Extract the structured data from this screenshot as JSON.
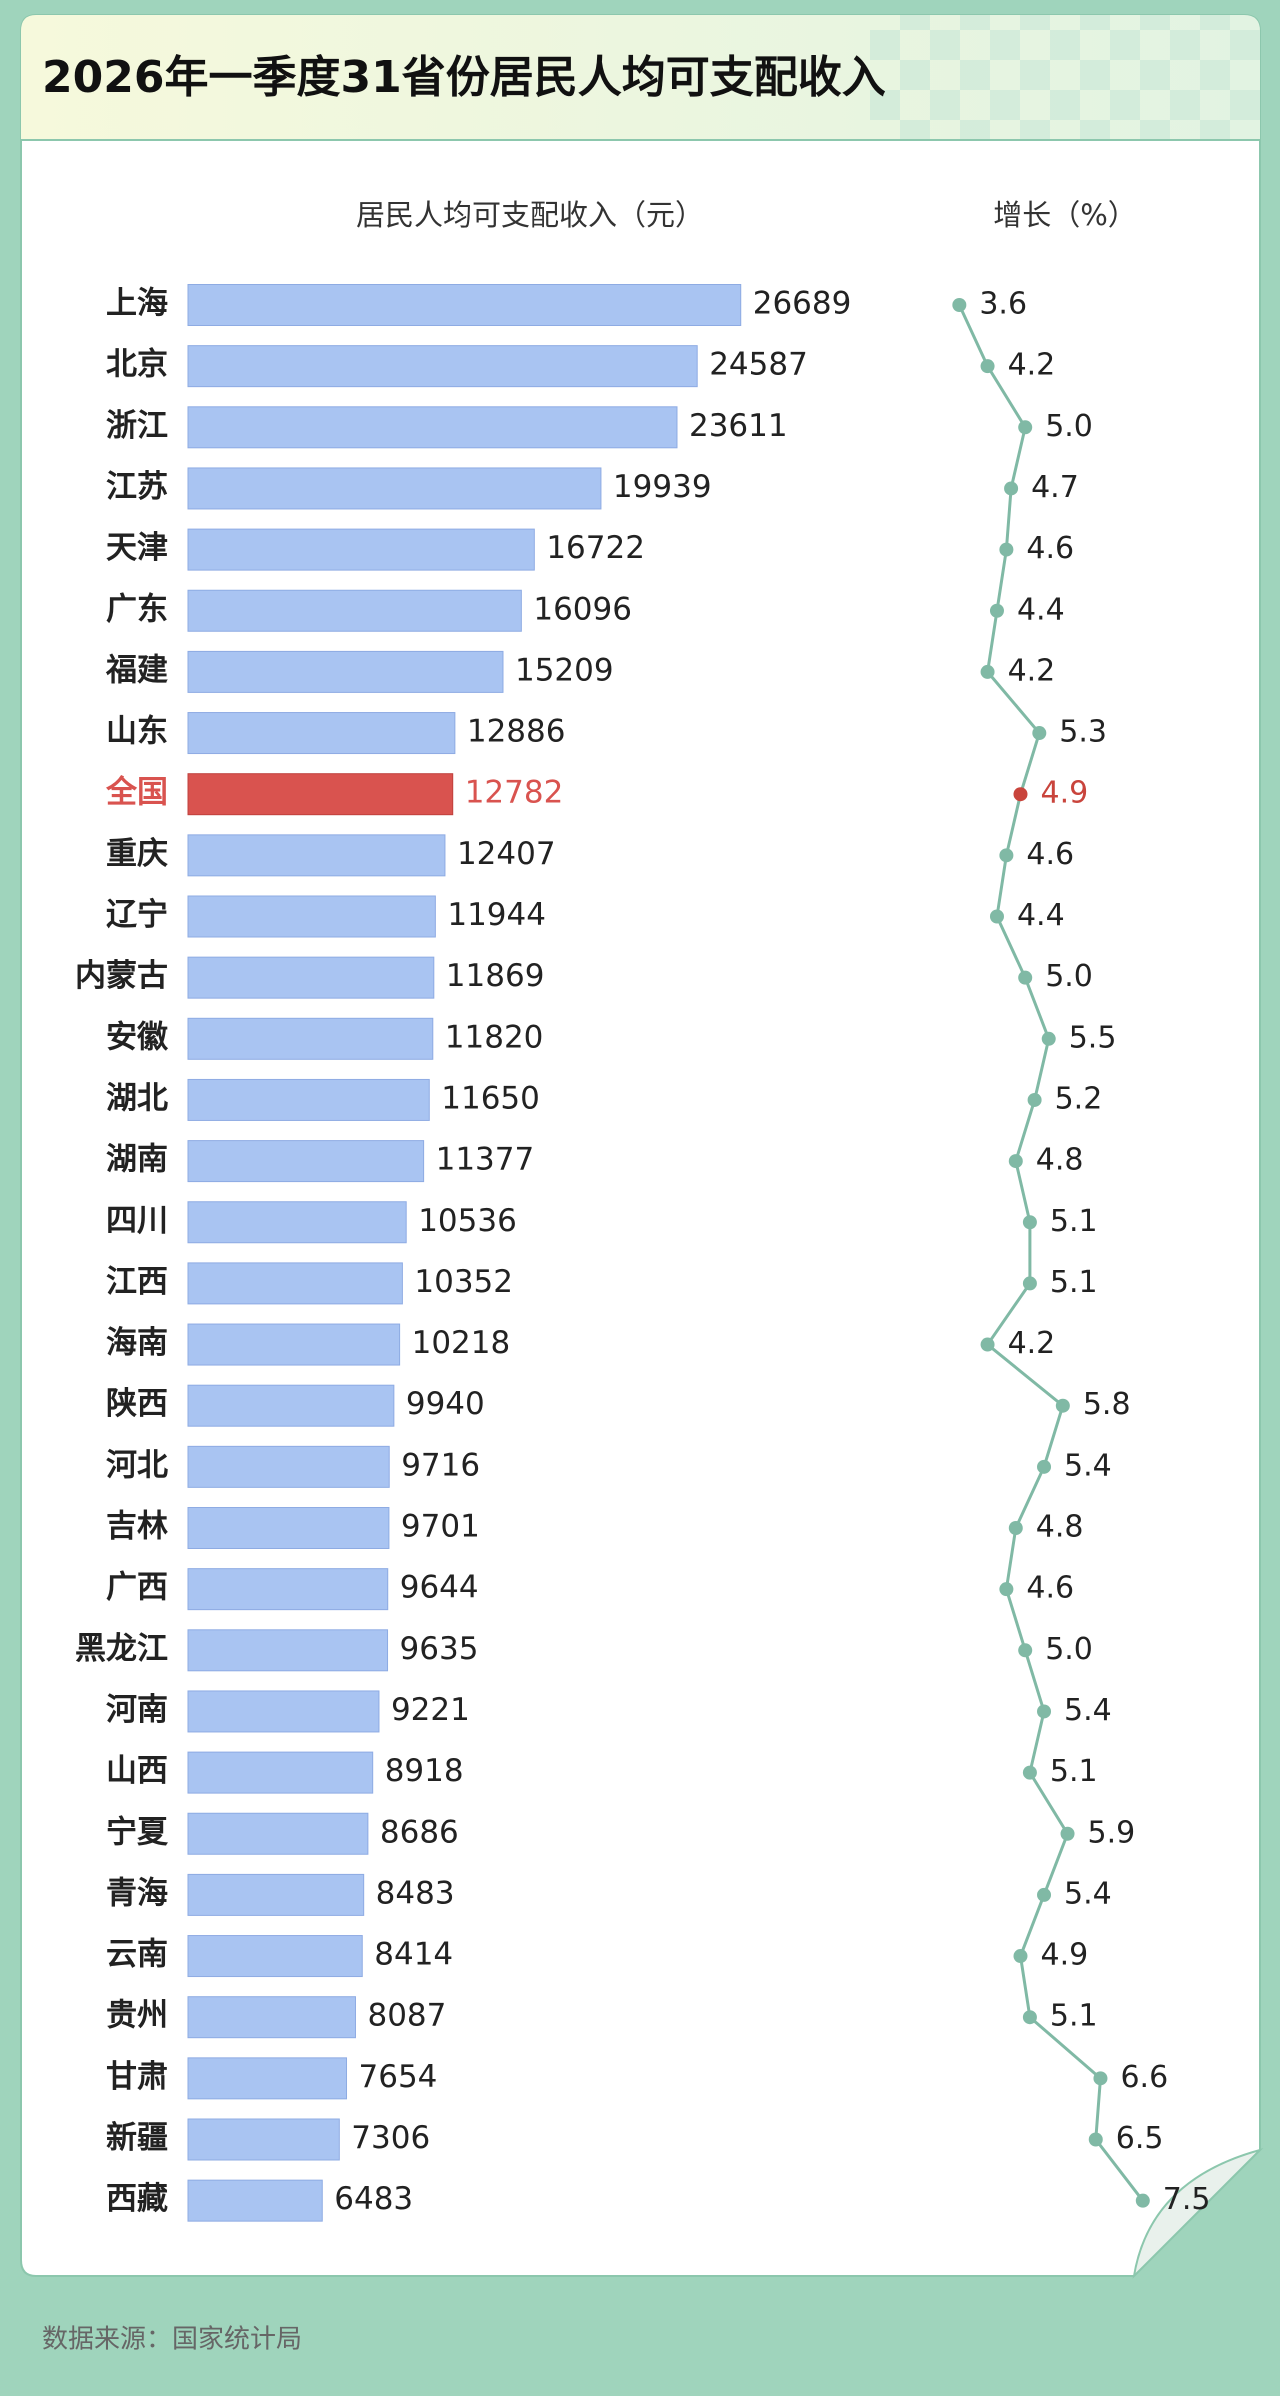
{
  "title": "2026年一季度31省份居民人均可支配收入",
  "source": "数据来源：国家统计局",
  "chart_data": [
    {
      "type": "bar",
      "title": "居民人均可支配收入（元）",
      "color": "#a9c4f2",
      "categories": [
        "上海",
        "北京",
        "浙江",
        "江苏",
        "天津",
        "广东",
        "福建",
        "山东",
        "全国",
        "重庆",
        "辽宁",
        "内蒙古",
        "安徽",
        "湖北",
        "湖南",
        "四川",
        "江西",
        "海南",
        "陕西",
        "河北",
        "吉林",
        "广西",
        "黑龙江",
        "河南",
        "山西",
        "宁夏",
        "青海",
        "云南",
        "贵州",
        "甘肃",
        "新疆",
        "西藏"
      ],
      "values": [
        26689,
        24587,
        23611,
        19939,
        16722,
        16096,
        15209,
        12886,
        12782,
        12407,
        11944,
        11869,
        11820,
        11650,
        11377,
        10536,
        10352,
        10218,
        9940,
        9716,
        9701,
        9644,
        9635,
        9221,
        8918,
        8686,
        8483,
        8414,
        8087,
        7654,
        7306,
        6483
      ],
      "colors": [
        "#a9c4f2",
        "#a9c4f2",
        "#a9c4f2",
        "#a9c4f2",
        "#a9c4f2",
        "#a9c4f2",
        "#a9c4f2",
        "#a9c4f2",
        "#d9534f",
        "#a9c4f2",
        "#a9c4f2",
        "#a9c4f2",
        "#a9c4f2",
        "#a9c4f2",
        "#a9c4f2",
        "#a9c4f2",
        "#a9c4f2",
        "#a9c4f2",
        "#a9c4f2",
        "#a9c4f2",
        "#a9c4f2",
        "#a9c4f2",
        "#a9c4f2",
        "#a9c4f2",
        "#a9c4f2",
        "#a9c4f2",
        "#a9c4f2",
        "#a9c4f2",
        "#a9c4f2",
        "#a9c4f2",
        "#a9c4f2",
        "#a9c4f2"
      ]
    },
    {
      "type": "line",
      "title": "增长（%）",
      "color": "#80b9a5",
      "values": [
        3.6,
        4.2,
        5.0,
        4.7,
        4.6,
        4.4,
        4.2,
        5.3,
        4.9,
        4.6,
        4.4,
        5.0,
        5.5,
        5.2,
        4.8,
        5.1,
        5.1,
        4.2,
        5.8,
        5.4,
        4.8,
        4.6,
        5.0,
        5.4,
        5.1,
        5.9,
        5.4,
        4.9,
        5.1,
        6.6,
        6.5,
        7.5
      ],
      "value_labels": [
        "3.6",
        "4.2",
        "5.0",
        "4.7",
        "4.6",
        "4.4",
        "4.2",
        "5.3",
        "4.9",
        "4.6",
        "4.4",
        "5.0",
        "5.5",
        "5.2",
        "4.8",
        "5.1",
        "5.1",
        "4.2",
        "5.8",
        "5.4",
        "4.8",
        "4.6",
        "5.0",
        "5.4",
        "5.1",
        "5.9",
        "5.4",
        "4.9",
        "5.1",
        "6.6",
        "6.5",
        "7.5"
      ],
      "colors": [
        "#80b9a5",
        "#80b9a5",
        "#80b9a5",
        "#80b9a5",
        "#80b9a5",
        "#80b9a5",
        "#80b9a5",
        "#80b9a5",
        "#c9443c",
        "#80b9a5",
        "#80b9a5",
        "#80b9a5",
        "#80b9a5",
        "#80b9a5",
        "#80b9a5",
        "#80b9a5",
        "#80b9a5",
        "#80b9a5",
        "#80b9a5",
        "#80b9a5",
        "#80b9a5",
        "#80b9a5",
        "#80b9a5",
        "#80b9a5",
        "#80b9a5",
        "#80b9a5",
        "#80b9a5",
        "#80b9a5",
        "#80b9a5",
        "#80b9a5",
        "#80b9a5",
        "#80b9a5"
      ]
    }
  ]
}
